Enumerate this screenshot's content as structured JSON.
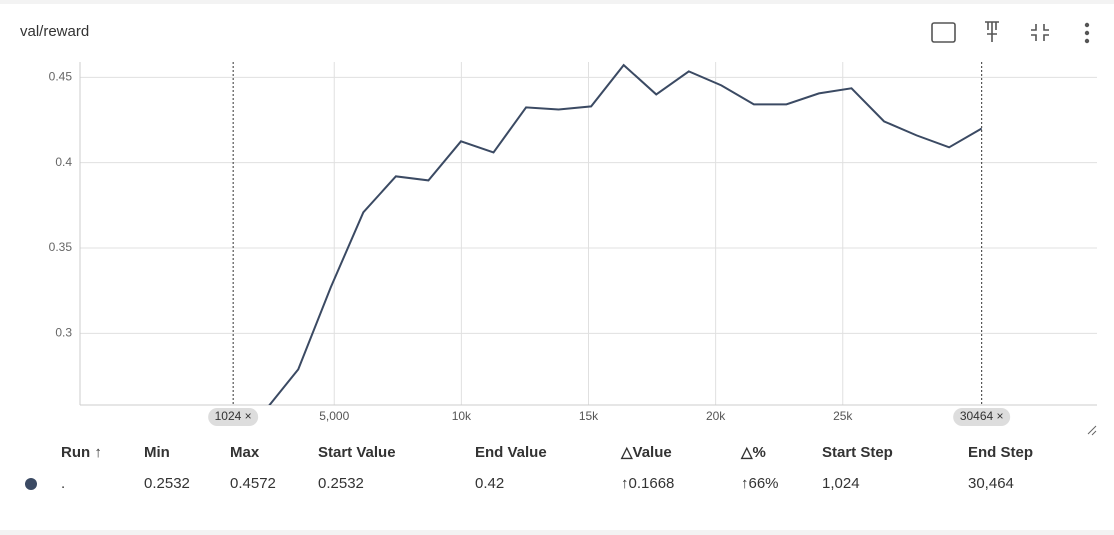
{
  "title": "val/reward",
  "chart_data": {
    "type": "line",
    "x": [
      1024,
      2304,
      3584,
      4864,
      6144,
      7424,
      8704,
      9984,
      11264,
      12544,
      13824,
      15104,
      16384,
      17664,
      18944,
      20224,
      21504,
      22784,
      24064,
      25344,
      26624,
      27904,
      29184,
      30464
    ],
    "series": [
      {
        "name": ".",
        "color": "#3b4a63",
        "values": [
          0.2532,
          0.2552,
          0.2789,
          0.327,
          0.3709,
          0.392,
          0.3896,
          0.4125,
          0.406,
          0.4324,
          0.4312,
          0.433,
          0.4572,
          0.44,
          0.4535,
          0.4453,
          0.4342,
          0.4342,
          0.4406,
          0.4436,
          0.4242,
          0.416,
          0.409,
          0.42
        ]
      }
    ],
    "xlim": [
      -5000,
      35000
    ],
    "xticks": [
      {
        "value": 5000,
        "label": "5,000"
      },
      {
        "value": 10000,
        "label": "10k"
      },
      {
        "value": 15000,
        "label": "15k"
      },
      {
        "value": 20000,
        "label": "20k"
      },
      {
        "value": 25000,
        "label": "25k"
      }
    ],
    "ylim": [
      0.258,
      0.459
    ],
    "yticks": [
      0.3,
      0.35,
      0.4,
      0.45
    ],
    "grid": true,
    "range_markers": [
      {
        "value": 1024,
        "label": "1024 ×"
      },
      {
        "value": 30464,
        "label": "30464 ×"
      }
    ]
  },
  "table": {
    "headers": [
      "Run ↑",
      "Min",
      "Max",
      "Start Value",
      "End Value",
      "△Value",
      "△%",
      "Start Step",
      "End Step"
    ],
    "rows": [
      [
        ".",
        "0.2532",
        "0.4572",
        "0.2532",
        "0.42",
        "↑0.1668",
        "↑66%",
        "1,024",
        "30,464"
      ]
    ]
  }
}
